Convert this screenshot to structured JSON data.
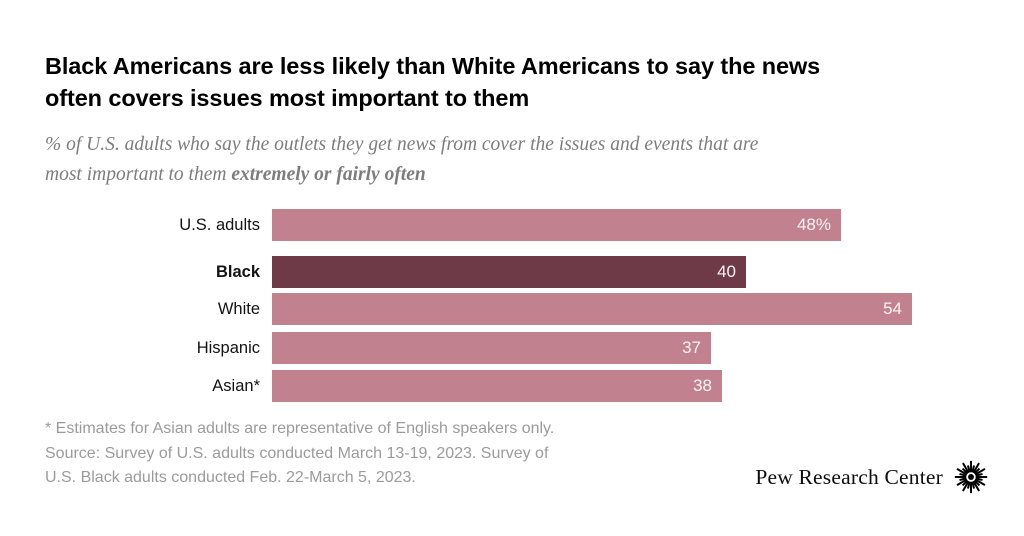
{
  "title_lines": [
    "Black Americans are less likely than White Americans to say the news",
    "often covers issues most important to them"
  ],
  "subtitle": {
    "line1": "% of U.S. adults who say the outlets they get news from cover the issues and events that are",
    "line2_regular": "most important to them ",
    "line2_bold": "extremely or fairly often"
  },
  "chart_data": {
    "type": "bar",
    "orientation": "horizontal",
    "categories": [
      "U.S. adults",
      "Black",
      "White",
      "Hispanic",
      "Asian*"
    ],
    "values": [
      48,
      40,
      54,
      37,
      38
    ],
    "value_labels": [
      "48%",
      "40",
      "54",
      "37",
      "38"
    ],
    "highlight_index": 1,
    "highlight_category": "Black",
    "bar_color": "#c2818f",
    "highlight_color": "#6e3a47",
    "value_label_color": "#faf4f5",
    "xlim": [
      0,
      54
    ],
    "axis": "hidden",
    "grid": "off",
    "legend": "none",
    "value_labels_position": "inside-end"
  },
  "footnotes": {
    "line1": "* Estimates for Asian adults are representative of English speakers only.",
    "line2": "Source: Survey of U.S. adults conducted March 13-19, 2023. Survey of",
    "line3": "U.S. Black adults conducted Feb. 22-March 5, 2023."
  },
  "branding": {
    "name": "Pew Research Center",
    "logo": "pew-sunburst-icon",
    "logo_color": "#000000"
  }
}
